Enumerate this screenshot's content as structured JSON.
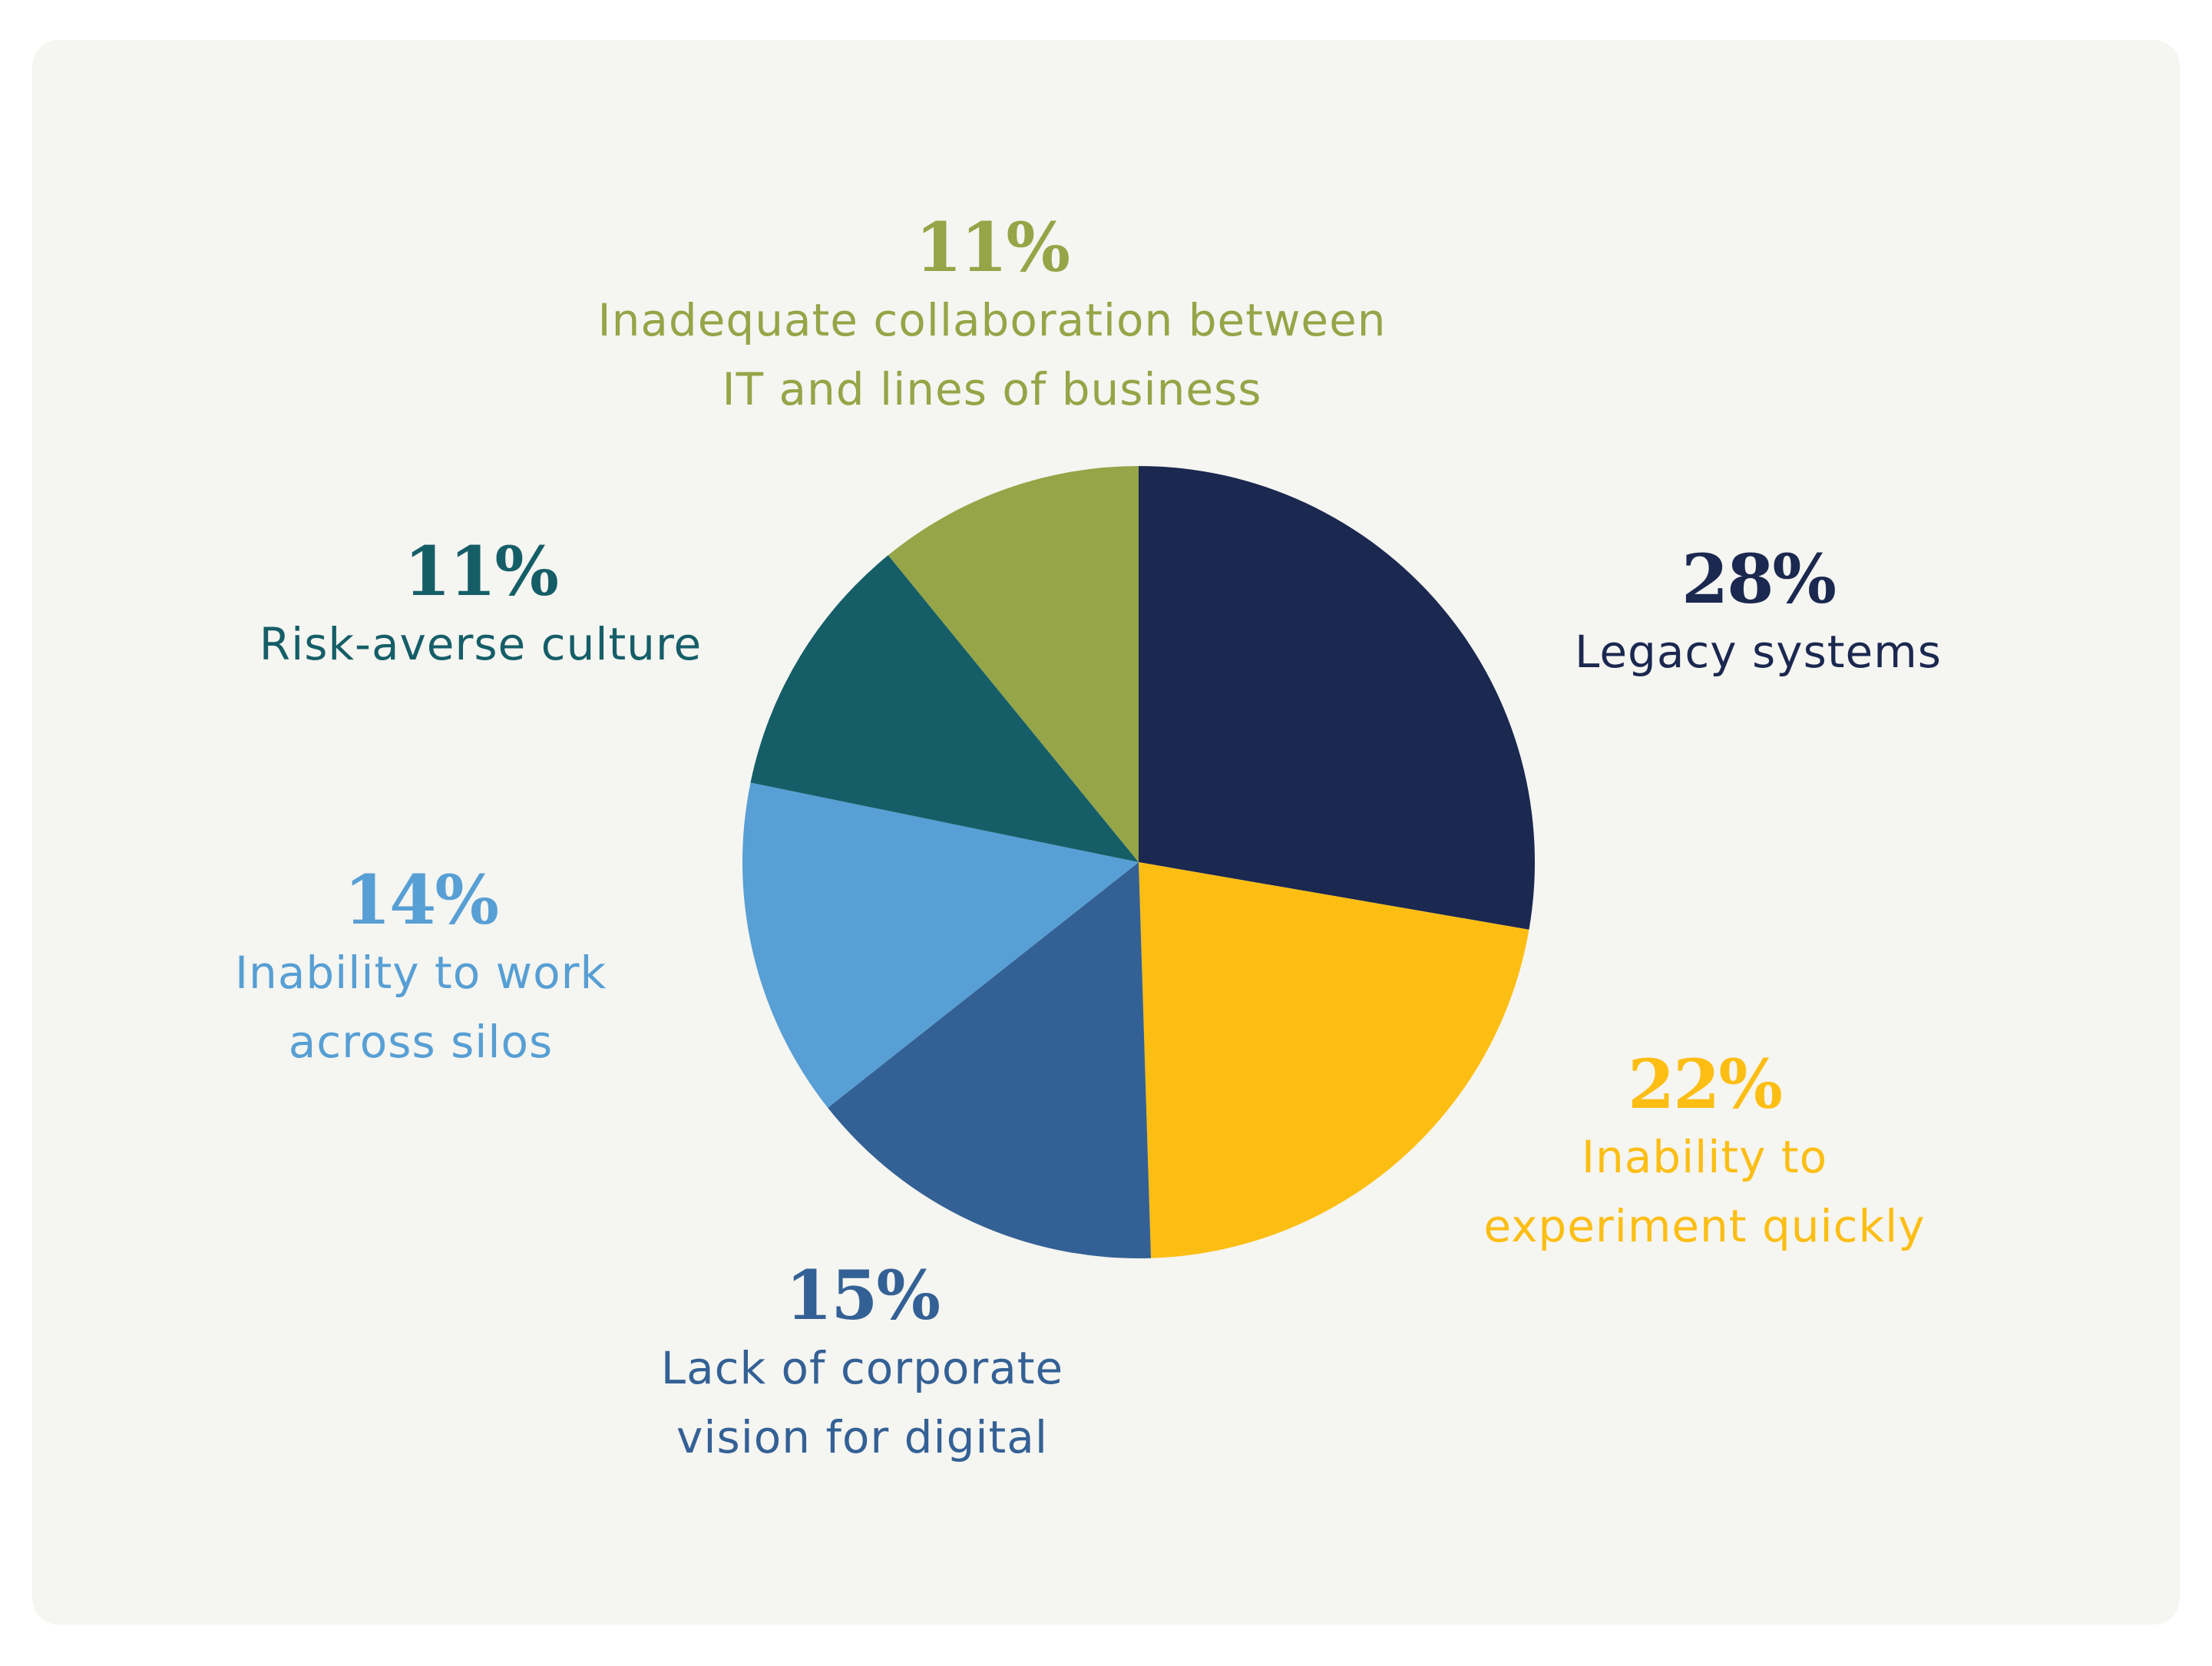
{
  "chart_data": {
    "type": "pie",
    "start_angle_deg": 0,
    "direction": "clockwise",
    "slices": [
      {
        "label_lines": [
          "Legacy systems"
        ],
        "value": 28,
        "value_label": "28%",
        "color": "#1b2850"
      },
      {
        "label_lines": [
          "Inability to",
          "experiment quickly"
        ],
        "value": 22,
        "value_label": "22%",
        "color": "#fdbe14"
      },
      {
        "label_lines": [
          "Lack of corporate",
          "vision for digital"
        ],
        "value": 15,
        "value_label": "15%",
        "color": "#346195"
      },
      {
        "label_lines": [
          "Inability to work",
          "across silos"
        ],
        "value": 14,
        "value_label": "14%",
        "color": "#579fd4"
      },
      {
        "label_lines": [
          "Risk-averse culture"
        ],
        "value": 11,
        "value_label": "11%",
        "color": "#155e68"
      },
      {
        "label_lines": [
          "Inadequate collaboration between",
          "IT and lines of business"
        ],
        "value": 11,
        "value_label": "11%",
        "color": "#95a547"
      }
    ],
    "legend": "none",
    "grid": false
  }
}
